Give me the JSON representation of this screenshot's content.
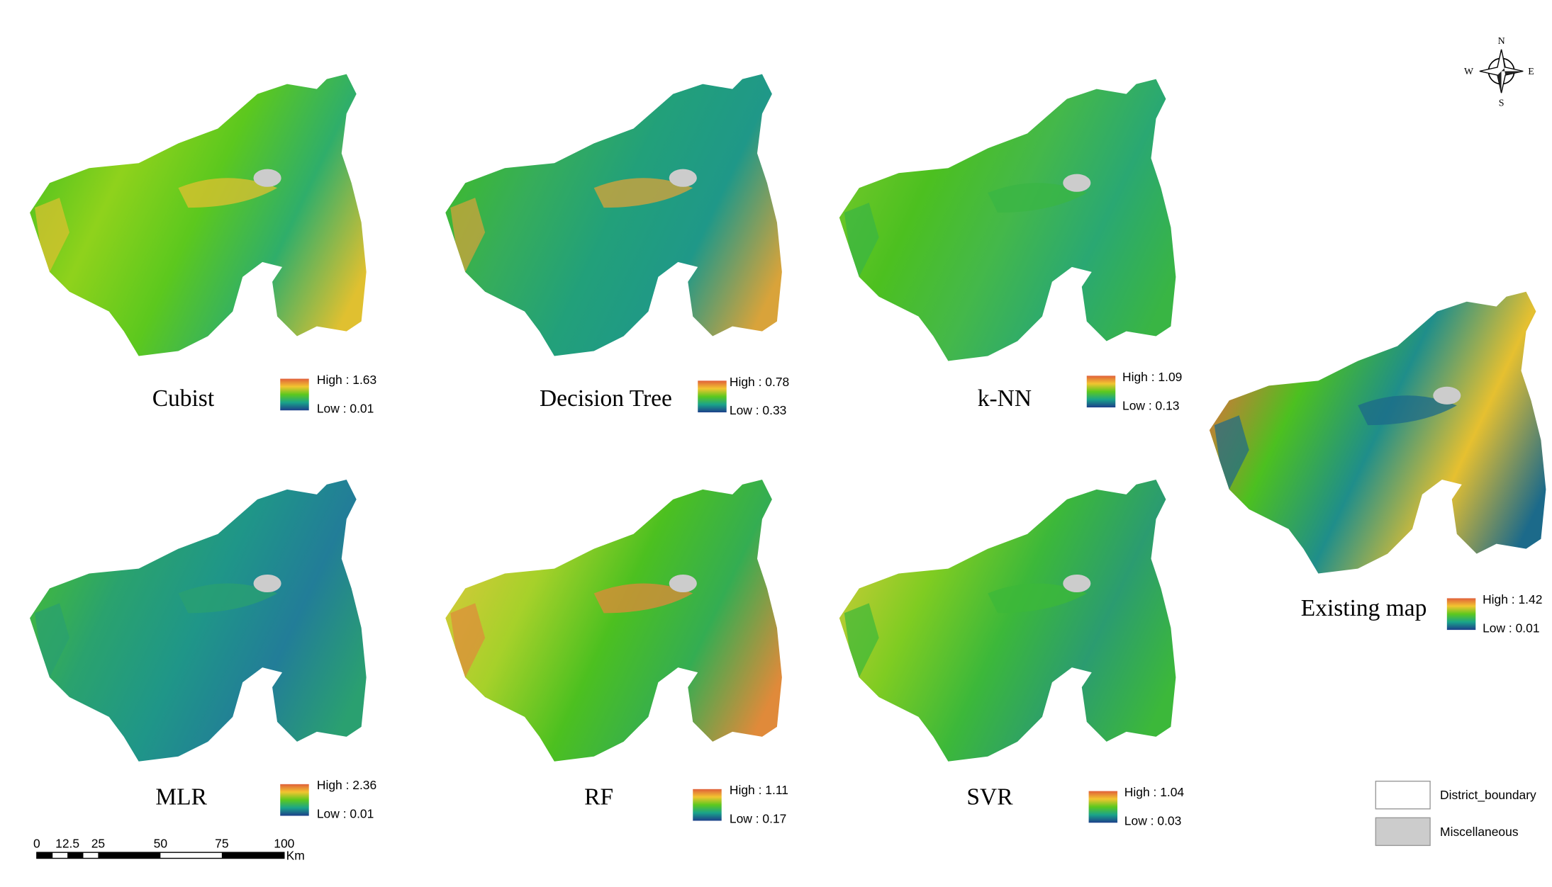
{
  "compass": {
    "n": "N",
    "e": "E",
    "s": "S",
    "w": "W"
  },
  "panels": [
    {
      "title": "Cubist",
      "high": "High : 1.63",
      "low": "Low : 0.01"
    },
    {
      "title": "Decision Tree",
      "high": "High : 0.78",
      "low": "Low : 0.33"
    },
    {
      "title": "k-NN",
      "high": "High : 1.09",
      "low": "Low : 0.13"
    },
    {
      "title": "MLR",
      "high": "High : 2.36",
      "low": "Low : 0.01"
    },
    {
      "title": "RF",
      "high": "High : 1.11",
      "low": "Low : 0.17"
    },
    {
      "title": "SVR",
      "high": "High : 1.04",
      "low": "Low : 0.03"
    },
    {
      "title": "Existing map",
      "high": "High : 1.42",
      "low": "Low : 0.01"
    }
  ],
  "scale_bar": {
    "ticks": [
      "0",
      "12.5",
      "25",
      "50",
      "75",
      "100"
    ],
    "unit": "Km"
  },
  "legend": [
    "District_boundary",
    "Miscellaneous"
  ]
}
